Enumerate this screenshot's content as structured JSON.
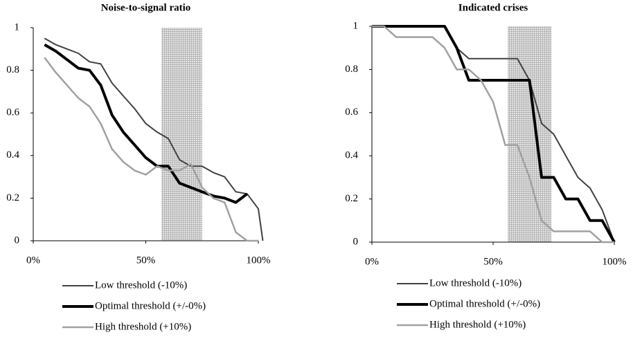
{
  "chart_data": [
    {
      "type": "line",
      "title": "Noise-to-signal ratio",
      "x": [
        5,
        10,
        15,
        20,
        25,
        30,
        35,
        40,
        45,
        50,
        55,
        60,
        65,
        70,
        75,
        80,
        85,
        90,
        95,
        100,
        102
      ],
      "series": [
        {
          "name": "Low threshold (-10%)",
          "color": "#404040",
          "values": [
            0.95,
            0.92,
            0.9,
            0.88,
            0.84,
            0.83,
            0.74,
            0.68,
            0.62,
            0.55,
            0.51,
            0.48,
            0.38,
            0.35,
            0.35,
            0.32,
            0.3,
            0.23,
            0.22,
            0.15,
            0
          ]
        },
        {
          "name": "Optimal threshold (+/-0%)",
          "color": "#000000",
          "values": [
            0.92,
            0.89,
            0.85,
            0.81,
            0.8,
            0.73,
            0.59,
            0.51,
            0.45,
            0.39,
            0.35,
            0.35,
            0.27,
            0.25,
            0.23,
            0.21,
            0.2,
            0.18,
            0.22,
            null,
            null
          ]
        },
        {
          "name": "High threshold (+10%)",
          "color": "#a0a0a0",
          "values": [
            0.86,
            0.79,
            0.73,
            0.67,
            0.63,
            0.55,
            0.43,
            0.37,
            0.33,
            0.31,
            0.35,
            0.33,
            0.33,
            0.36,
            0.25,
            0.2,
            0.18,
            0.04,
            0,
            0,
            null
          ]
        }
      ],
      "xlim": [
        0,
        100
      ],
      "ylim": [
        0,
        1
      ],
      "xticks": [
        {
          "value": 0,
          "label": "0%"
        },
        {
          "value": 50,
          "label": "50%"
        },
        {
          "value": 100,
          "label": "100%"
        }
      ],
      "yticks": [
        0,
        0.2,
        0.4,
        0.6,
        0.8,
        1
      ],
      "shaded_region": [
        57,
        75
      ]
    },
    {
      "type": "line",
      "title": "Indicated crises",
      "x": [
        0,
        5,
        10,
        15,
        20,
        25,
        30,
        35,
        40,
        45,
        50,
        55,
        60,
        65,
        70,
        75,
        80,
        85,
        90,
        95,
        100
      ],
      "series": [
        {
          "name": "Low threshold (-10%)",
          "color": "#404040",
          "values": [
            1,
            1,
            1,
            1,
            1,
            1,
            1,
            0.9,
            0.85,
            0.85,
            0.85,
            0.85,
            0.85,
            0.75,
            0.55,
            0.5,
            0.4,
            0.3,
            0.25,
            0.15,
            0
          ]
        },
        {
          "name": "Optimal threshold (+/-0%)",
          "color": "#000000",
          "values": [
            1,
            1,
            1,
            1,
            1,
            1,
            1,
            0.9,
            0.75,
            0.75,
            0.75,
            0.75,
            0.75,
            0.75,
            0.3,
            0.3,
            0.2,
            0.2,
            0.1,
            0.1,
            0
          ]
        },
        {
          "name": "High threshold (+10%)",
          "color": "#a0a0a0",
          "values": [
            1,
            1,
            0.95,
            0.95,
            0.95,
            0.95,
            0.9,
            0.8,
            0.8,
            0.75,
            0.65,
            0.45,
            0.45,
            0.3,
            0.1,
            0.05,
            0.05,
            0.05,
            0.05,
            0,
            0
          ]
        }
      ],
      "xlim": [
        0,
        100
      ],
      "ylim": [
        0,
        1
      ],
      "xticks": [
        {
          "value": 0,
          "label": "0%"
        },
        {
          "value": 50,
          "label": "50%"
        },
        {
          "value": 100,
          "label": "100%"
        }
      ],
      "yticks": [
        0,
        0.2,
        0.4,
        0.6,
        0.8,
        1
      ],
      "shaded_region": [
        56,
        74
      ]
    }
  ]
}
